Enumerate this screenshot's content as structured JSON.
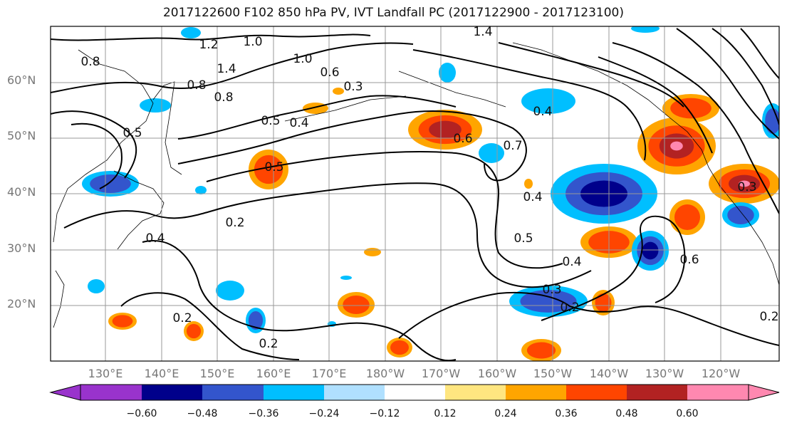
{
  "title": "2017122600 F102 850 hPa PV, IVT Landfall PC (2017122900 - 2017123100)",
  "map": {
    "lat_labels": [
      "60°N",
      "50°N",
      "40°N",
      "30°N",
      "20°N"
    ],
    "lon_labels": [
      "130°E",
      "140°E",
      "150°E",
      "160°E",
      "170°E",
      "180°W",
      "170°W",
      "160°W",
      "150°W",
      "140°W",
      "130°W",
      "120°W"
    ],
    "contour_labels": [
      "0.8",
      "1.2",
      "1.0",
      "1.4",
      "1.0",
      "1.4",
      "0.8",
      "0.5",
      "0.6",
      "0.3",
      "0.8",
      "0.5",
      "0.4",
      "0.5",
      "0.6",
      "0.7",
      "0.4",
      "0.4",
      "0.2",
      "0.4",
      "0.5",
      "0.4",
      "0.3",
      "0.2",
      "0.2",
      "0.2",
      "0.6",
      "0.3",
      "0.2"
    ]
  },
  "colorbar": {
    "labels": [
      "−0.60",
      "−0.48",
      "−0.36",
      "−0.24",
      "−0.12",
      "0.12",
      "0.24",
      "0.36",
      "0.48",
      "0.60"
    ],
    "colors": [
      "#9933cc",
      "#00008b",
      "#3355cc",
      "#00bfff",
      "#b0e0ff",
      "#ffffff",
      "#ffe680",
      "#ffa500",
      "#ff4500",
      "#b22222",
      "#ff88b0",
      "#ff88b0"
    ]
  }
}
